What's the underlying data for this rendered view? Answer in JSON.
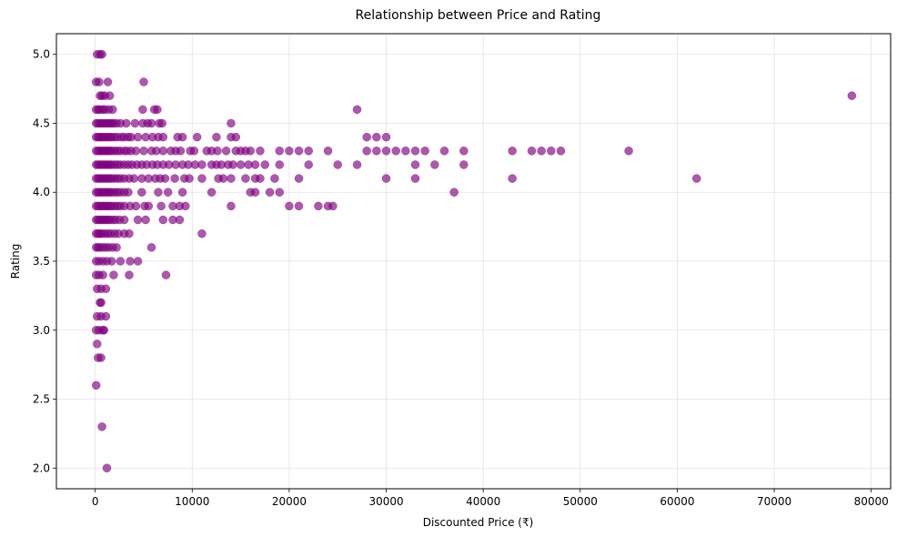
{
  "chart_data": {
    "type": "scatter",
    "title": "Relationship between Price and Rating",
    "xlabel": "Discounted Price (₹)",
    "ylabel": "Rating",
    "xlim": [
      -4000,
      82000
    ],
    "ylim": [
      1.85,
      5.15
    ],
    "xticks": [
      0,
      10000,
      20000,
      30000,
      40000,
      50000,
      60000,
      70000,
      80000
    ],
    "yticks": [
      2.0,
      2.5,
      3.0,
      3.5,
      4.0,
      4.5,
      5.0
    ],
    "grid": true,
    "point_color": "#800080",
    "point_alpha": 0.65,
    "points": [
      [
        200,
        5.0
      ],
      [
        500,
        5.0
      ],
      [
        700,
        5.0
      ],
      [
        100,
        4.8
      ],
      [
        400,
        4.8
      ],
      [
        1300,
        4.8
      ],
      [
        5000,
        4.8
      ],
      [
        500,
        4.7
      ],
      [
        700,
        4.7
      ],
      [
        1000,
        4.7
      ],
      [
        1500,
        4.7
      ],
      [
        78000,
        4.7
      ],
      [
        100,
        4.6
      ],
      [
        300,
        4.6
      ],
      [
        500,
        4.6
      ],
      [
        800,
        4.6
      ],
      [
        1000,
        4.6
      ],
      [
        1400,
        4.6
      ],
      [
        1800,
        4.6
      ],
      [
        4900,
        4.6
      ],
      [
        6100,
        4.6
      ],
      [
        6400,
        4.6
      ],
      [
        27000,
        4.6
      ],
      [
        100,
        4.5
      ],
      [
        300,
        4.5
      ],
      [
        500,
        4.5
      ],
      [
        700,
        4.5
      ],
      [
        900,
        4.5
      ],
      [
        1100,
        4.5
      ],
      [
        1300,
        4.5
      ],
      [
        1500,
        4.5
      ],
      [
        1700,
        4.5
      ],
      [
        1900,
        4.5
      ],
      [
        2200,
        4.5
      ],
      [
        2600,
        4.5
      ],
      [
        3200,
        4.5
      ],
      [
        4100,
        4.5
      ],
      [
        4900,
        4.5
      ],
      [
        5400,
        4.5
      ],
      [
        5800,
        4.5
      ],
      [
        6600,
        4.5
      ],
      [
        6900,
        4.5
      ],
      [
        14000,
        4.5
      ],
      [
        100,
        4.4
      ],
      [
        300,
        4.4
      ],
      [
        500,
        4.4
      ],
      [
        700,
        4.4
      ],
      [
        900,
        4.4
      ],
      [
        1100,
        4.4
      ],
      [
        1300,
        4.4
      ],
      [
        1500,
        4.4
      ],
      [
        1700,
        4.4
      ],
      [
        2000,
        4.4
      ],
      [
        2300,
        4.4
      ],
      [
        2700,
        4.4
      ],
      [
        3000,
        4.4
      ],
      [
        3400,
        4.4
      ],
      [
        3700,
        4.4
      ],
      [
        4400,
        4.4
      ],
      [
        5200,
        4.4
      ],
      [
        5900,
        4.4
      ],
      [
        6500,
        4.4
      ],
      [
        7000,
        4.4
      ],
      [
        8500,
        4.4
      ],
      [
        9000,
        4.4
      ],
      [
        10500,
        4.4
      ],
      [
        12500,
        4.4
      ],
      [
        14000,
        4.4
      ],
      [
        14500,
        4.4
      ],
      [
        28000,
        4.4
      ],
      [
        29000,
        4.4
      ],
      [
        30000,
        4.4
      ],
      [
        100,
        4.3
      ],
      [
        300,
        4.3
      ],
      [
        500,
        4.3
      ],
      [
        700,
        4.3
      ],
      [
        900,
        4.3
      ],
      [
        1100,
        4.3
      ],
      [
        1300,
        4.3
      ],
      [
        1500,
        4.3
      ],
      [
        1700,
        4.3
      ],
      [
        2000,
        4.3
      ],
      [
        2300,
        4.3
      ],
      [
        2600,
        4.3
      ],
      [
        3000,
        4.3
      ],
      [
        3300,
        4.3
      ],
      [
        3700,
        4.3
      ],
      [
        4200,
        4.3
      ],
      [
        5000,
        4.3
      ],
      [
        5800,
        4.3
      ],
      [
        6300,
        4.3
      ],
      [
        7000,
        4.3
      ],
      [
        7800,
        4.3
      ],
      [
        8300,
        4.3
      ],
      [
        8800,
        4.3
      ],
      [
        9800,
        4.3
      ],
      [
        10200,
        4.3
      ],
      [
        11500,
        4.3
      ],
      [
        12000,
        4.3
      ],
      [
        12600,
        4.3
      ],
      [
        13500,
        4.3
      ],
      [
        14500,
        4.3
      ],
      [
        15000,
        4.3
      ],
      [
        15500,
        4.3
      ],
      [
        16000,
        4.3
      ],
      [
        17000,
        4.3
      ],
      [
        19000,
        4.3
      ],
      [
        20000,
        4.3
      ],
      [
        21000,
        4.3
      ],
      [
        22000,
        4.3
      ],
      [
        24000,
        4.3
      ],
      [
        28000,
        4.3
      ],
      [
        29000,
        4.3
      ],
      [
        30000,
        4.3
      ],
      [
        31000,
        4.3
      ],
      [
        32000,
        4.3
      ],
      [
        33000,
        4.3
      ],
      [
        34000,
        4.3
      ],
      [
        36000,
        4.3
      ],
      [
        38000,
        4.3
      ],
      [
        43000,
        4.3
      ],
      [
        45000,
        4.3
      ],
      [
        46000,
        4.3
      ],
      [
        47000,
        4.3
      ],
      [
        48000,
        4.3
      ],
      [
        55000,
        4.3
      ],
      [
        100,
        4.2
      ],
      [
        300,
        4.2
      ],
      [
        500,
        4.2
      ],
      [
        700,
        4.2
      ],
      [
        900,
        4.2
      ],
      [
        1100,
        4.2
      ],
      [
        1300,
        4.2
      ],
      [
        1500,
        4.2
      ],
      [
        1700,
        4.2
      ],
      [
        2000,
        4.2
      ],
      [
        2300,
        4.2
      ],
      [
        2600,
        4.2
      ],
      [
        3000,
        4.2
      ],
      [
        3400,
        4.2
      ],
      [
        3800,
        4.2
      ],
      [
        4300,
        4.2
      ],
      [
        4800,
        4.2
      ],
      [
        5300,
        4.2
      ],
      [
        5900,
        4.2
      ],
      [
        6400,
        4.2
      ],
      [
        7000,
        4.2
      ],
      [
        7600,
        4.2
      ],
      [
        8300,
        4.2
      ],
      [
        9000,
        4.2
      ],
      [
        9600,
        4.2
      ],
      [
        10300,
        4.2
      ],
      [
        11000,
        4.2
      ],
      [
        12000,
        4.2
      ],
      [
        12500,
        4.2
      ],
      [
        13000,
        4.2
      ],
      [
        13700,
        4.2
      ],
      [
        14200,
        4.2
      ],
      [
        15000,
        4.2
      ],
      [
        15800,
        4.2
      ],
      [
        16500,
        4.2
      ],
      [
        17500,
        4.2
      ],
      [
        19000,
        4.2
      ],
      [
        22000,
        4.2
      ],
      [
        25000,
        4.2
      ],
      [
        27000,
        4.2
      ],
      [
        33000,
        4.2
      ],
      [
        35000,
        4.2
      ],
      [
        38000,
        4.2
      ],
      [
        100,
        4.1
      ],
      [
        300,
        4.1
      ],
      [
        500,
        4.1
      ],
      [
        700,
        4.1
      ],
      [
        900,
        4.1
      ],
      [
        1100,
        4.1
      ],
      [
        1300,
        4.1
      ],
      [
        1500,
        4.1
      ],
      [
        1700,
        4.1
      ],
      [
        2000,
        4.1
      ],
      [
        2300,
        4.1
      ],
      [
        2600,
        4.1
      ],
      [
        3000,
        4.1
      ],
      [
        3500,
        4.1
      ],
      [
        4000,
        4.1
      ],
      [
        4800,
        4.1
      ],
      [
        5500,
        4.1
      ],
      [
        6200,
        4.1
      ],
      [
        6700,
        4.1
      ],
      [
        7200,
        4.1
      ],
      [
        8200,
        4.1
      ],
      [
        9200,
        4.1
      ],
      [
        9700,
        4.1
      ],
      [
        11000,
        4.1
      ],
      [
        12700,
        4.1
      ],
      [
        13200,
        4.1
      ],
      [
        14000,
        4.1
      ],
      [
        15500,
        4.1
      ],
      [
        16500,
        4.1
      ],
      [
        17000,
        4.1
      ],
      [
        18500,
        4.1
      ],
      [
        21000,
        4.1
      ],
      [
        30000,
        4.1
      ],
      [
        33000,
        4.1
      ],
      [
        43000,
        4.1
      ],
      [
        62000,
        4.1
      ],
      [
        100,
        4.0
      ],
      [
        300,
        4.0
      ],
      [
        500,
        4.0
      ],
      [
        700,
        4.0
      ],
      [
        900,
        4.0
      ],
      [
        1100,
        4.0
      ],
      [
        1300,
        4.0
      ],
      [
        1500,
        4.0
      ],
      [
        1700,
        4.0
      ],
      [
        2000,
        4.0
      ],
      [
        2300,
        4.0
      ],
      [
        2600,
        4.0
      ],
      [
        3000,
        4.0
      ],
      [
        3400,
        4.0
      ],
      [
        4800,
        4.0
      ],
      [
        6500,
        4.0
      ],
      [
        7500,
        4.0
      ],
      [
        9000,
        4.0
      ],
      [
        12000,
        4.0
      ],
      [
        16000,
        4.0
      ],
      [
        16500,
        4.0
      ],
      [
        18000,
        4.0
      ],
      [
        19000,
        4.0
      ],
      [
        37000,
        4.0
      ],
      [
        100,
        3.9
      ],
      [
        300,
        3.9
      ],
      [
        500,
        3.9
      ],
      [
        700,
        3.9
      ],
      [
        900,
        3.9
      ],
      [
        1100,
        3.9
      ],
      [
        1300,
        3.9
      ],
      [
        1500,
        3.9
      ],
      [
        1700,
        3.9
      ],
      [
        2000,
        3.9
      ],
      [
        2300,
        3.9
      ],
      [
        2600,
        3.9
      ],
      [
        3000,
        3.9
      ],
      [
        3600,
        3.9
      ],
      [
        4200,
        3.9
      ],
      [
        5100,
        3.9
      ],
      [
        5500,
        3.9
      ],
      [
        6800,
        3.9
      ],
      [
        8000,
        3.9
      ],
      [
        8700,
        3.9
      ],
      [
        9300,
        3.9
      ],
      [
        14000,
        3.9
      ],
      [
        20000,
        3.9
      ],
      [
        21000,
        3.9
      ],
      [
        23000,
        3.9
      ],
      [
        24000,
        3.9
      ],
      [
        24500,
        3.9
      ],
      [
        100,
        3.8
      ],
      [
        300,
        3.8
      ],
      [
        500,
        3.8
      ],
      [
        700,
        3.8
      ],
      [
        900,
        3.8
      ],
      [
        1100,
        3.8
      ],
      [
        1300,
        3.8
      ],
      [
        1500,
        3.8
      ],
      [
        1800,
        3.8
      ],
      [
        2100,
        3.8
      ],
      [
        2500,
        3.8
      ],
      [
        3000,
        3.8
      ],
      [
        4400,
        3.8
      ],
      [
        5200,
        3.8
      ],
      [
        7000,
        3.8
      ],
      [
        8000,
        3.8
      ],
      [
        8700,
        3.8
      ],
      [
        100,
        3.7
      ],
      [
        300,
        3.7
      ],
      [
        500,
        3.7
      ],
      [
        700,
        3.7
      ],
      [
        1000,
        3.7
      ],
      [
        1300,
        3.7
      ],
      [
        1600,
        3.7
      ],
      [
        2000,
        3.7
      ],
      [
        2400,
        3.7
      ],
      [
        3000,
        3.7
      ],
      [
        3500,
        3.7
      ],
      [
        11000,
        3.7
      ],
      [
        100,
        3.6
      ],
      [
        300,
        3.6
      ],
      [
        500,
        3.6
      ],
      [
        800,
        3.6
      ],
      [
        1100,
        3.6
      ],
      [
        1400,
        3.6
      ],
      [
        1800,
        3.6
      ],
      [
        2200,
        3.6
      ],
      [
        5800,
        3.6
      ],
      [
        100,
        3.5
      ],
      [
        400,
        3.5
      ],
      [
        800,
        3.5
      ],
      [
        1200,
        3.5
      ],
      [
        1700,
        3.5
      ],
      [
        2600,
        3.5
      ],
      [
        3600,
        3.5
      ],
      [
        4400,
        3.5
      ],
      [
        100,
        3.4
      ],
      [
        400,
        3.4
      ],
      [
        800,
        3.4
      ],
      [
        1900,
        3.4
      ],
      [
        3500,
        3.4
      ],
      [
        7300,
        3.4
      ],
      [
        200,
        3.3
      ],
      [
        600,
        3.3
      ],
      [
        1100,
        3.3
      ],
      [
        500,
        3.2
      ],
      [
        600,
        3.2
      ],
      [
        200,
        3.1
      ],
      [
        600,
        3.1
      ],
      [
        1100,
        3.1
      ],
      [
        100,
        3.0
      ],
      [
        400,
        3.0
      ],
      [
        800,
        3.0
      ],
      [
        900,
        3.0
      ],
      [
        200,
        2.9
      ],
      [
        300,
        2.8
      ],
      [
        600,
        2.8
      ],
      [
        100,
        2.6
      ],
      [
        700,
        2.3
      ],
      [
        1200,
        2.0
      ]
    ]
  }
}
